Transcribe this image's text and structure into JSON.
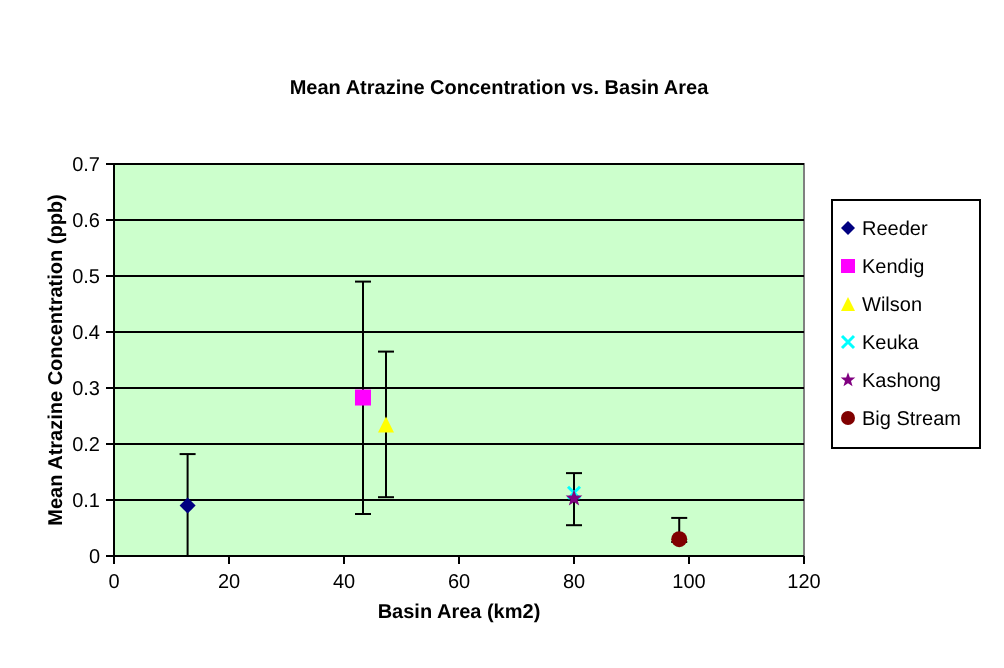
{
  "chart_data": {
    "type": "scatter",
    "title": "Mean Atrazine Concentration vs. Basin Area",
    "xlabel": "Basin Area (km2)",
    "ylabel": "Mean Atrazine Concentration (ppb)",
    "xlim": [
      0,
      120
    ],
    "xticks": [
      0,
      20,
      40,
      60,
      80,
      100,
      120
    ],
    "ylim": [
      0,
      0.7
    ],
    "yticks": [
      0,
      0.1,
      0.2,
      0.3,
      0.4,
      0.5,
      0.6,
      0.7
    ],
    "grid": "y",
    "legend": "right",
    "series": [
      {
        "name": "Reeder",
        "color": "#000080",
        "marker": "diamond",
        "x": [
          12.8
        ],
        "values": [
          0.09
        ],
        "errors": [
          [
            0,
            0.182
          ]
        ]
      },
      {
        "name": "Kendig",
        "color": "#ff00ff",
        "marker": "square",
        "x": [
          43.3
        ],
        "values": [
          0.283
        ],
        "errors": [
          [
            0.075,
            0.49
          ]
        ]
      },
      {
        "name": "Wilson",
        "color": "#ffff00",
        "marker": "triangle",
        "x": [
          47.3
        ],
        "values": [
          0.235
        ],
        "errors": [
          [
            0.105,
            0.365
          ]
        ]
      },
      {
        "name": "Keuka",
        "color": "#00ffff",
        "marker": "cross",
        "x": [
          80
        ],
        "values": [
          0.113
        ],
        "errors": [
          [
            0.055,
            0.148
          ]
        ]
      },
      {
        "name": "Kashong",
        "color": "#800080",
        "marker": "star",
        "x": [
          80
        ],
        "values": [
          0.103
        ]
      },
      {
        "name": "Big Stream",
        "color": "#800000",
        "marker": "circle",
        "x": [
          98.3
        ],
        "values": [
          0.03
        ],
        "errors": [
          [
            0.025,
            0.068
          ]
        ]
      }
    ]
  }
}
